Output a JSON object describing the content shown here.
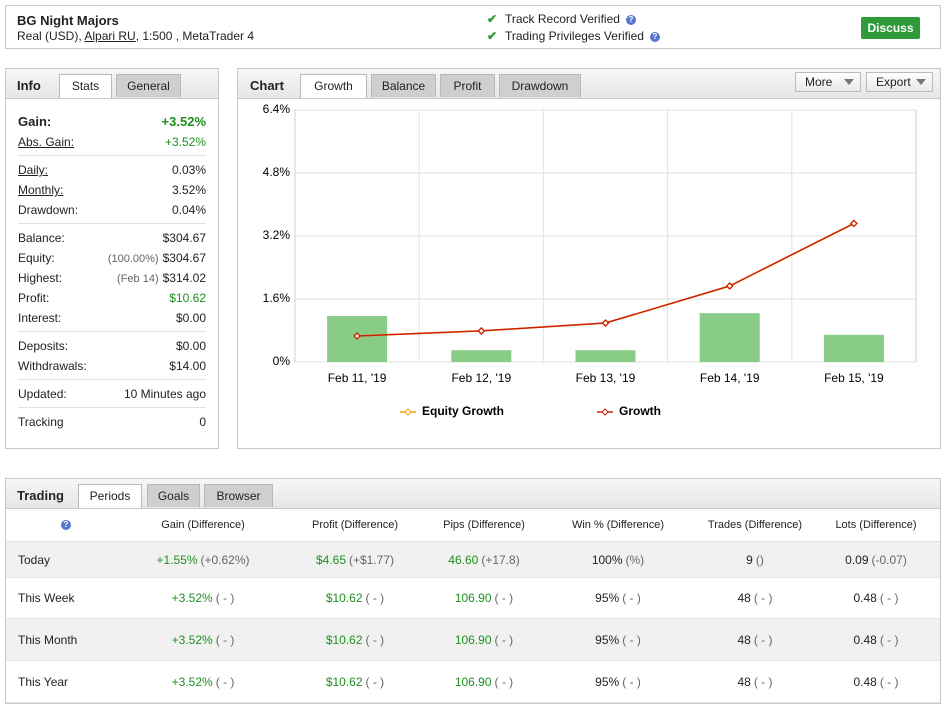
{
  "header": {
    "title": "BG Night Majors",
    "account": {
      "prefix": "Real (USD), ",
      "broker": "Alpari RU",
      "suffix": ", 1:500 , MetaTrader 4"
    },
    "verifications": [
      "Track Record Verified",
      "Trading Privileges Verified"
    ],
    "button": "Discuss"
  },
  "info": {
    "label": "Info",
    "tabs": [
      "Stats",
      "General"
    ],
    "groups": [
      [
        {
          "label": "Gain:",
          "value": "+3.52%",
          "color": "#1e8f1e"
        },
        {
          "label": "Abs. Gain:",
          "value": "+3.52%",
          "color": "#1e8f1e",
          "underline": true
        }
      ],
      [
        {
          "label": "Daily:",
          "value": "0.03%",
          "underline": true
        },
        {
          "label": "Monthly:",
          "value": "3.52%",
          "underline": true
        },
        {
          "label": "Drawdown:",
          "value": "0.04%"
        }
      ],
      [
        {
          "label": "Balance:",
          "value": "$304.67"
        },
        {
          "label": "Equity:",
          "note": "(100.00%)",
          "value": "$304.67"
        },
        {
          "label": "Highest:",
          "note": "(Feb 14)",
          "value": "$314.02"
        },
        {
          "label": "Profit:",
          "value": "$10.62",
          "color": "#1e8f1e"
        },
        {
          "label": "Interest:",
          "value": "$0.00"
        }
      ],
      [
        {
          "label": "Deposits:",
          "value": "$0.00"
        },
        {
          "label": "Withdrawals:",
          "value": "$14.00"
        }
      ],
      [
        {
          "label": "Updated:",
          "value": "10 Minutes ago"
        }
      ],
      [
        {
          "label": "Tracking",
          "value": "0"
        }
      ]
    ]
  },
  "chart_panel": {
    "label": "Chart",
    "tabs": [
      "Growth",
      "Balance",
      "Profit",
      "Drawdown"
    ],
    "buttons": [
      "More",
      "Export"
    ]
  },
  "chart_data": {
    "type": "combo",
    "categories": [
      "Feb 11, '19",
      "Feb 12, '19",
      "Feb 13, '19",
      "Feb 14, '19",
      "Feb 15, '19"
    ],
    "series": [
      {
        "type": "bar",
        "color": "#88cc88",
        "values": [
          1.17,
          0.3,
          0.3,
          1.24,
          0.69
        ]
      },
      {
        "name": "Equity Growth",
        "type": "line",
        "color": "#f0a30a",
        "values": [
          0.66,
          0.79,
          0.99,
          1.93,
          3.52
        ]
      },
      {
        "name": "Growth",
        "type": "line",
        "color": "#cc2200",
        "values": [
          0.66,
          0.79,
          0.99,
          1.93,
          3.52
        ]
      }
    ],
    "ylim": [
      0,
      6.4
    ],
    "yticks": [
      {
        "value": 0,
        "label": "0%"
      },
      {
        "value": 1.6,
        "label": "1.6%"
      },
      {
        "value": 3.2,
        "label": "3.2%"
      },
      {
        "value": 4.8,
        "label": "4.8%"
      },
      {
        "value": 6.4,
        "label": "6.4%"
      }
    ],
    "grid": true
  },
  "trading": {
    "label": "Trading",
    "tabs": [
      "Periods",
      "Goals",
      "Browser"
    ],
    "columns": [
      "Gain (Difference)",
      "Profit (Difference)",
      "Pips (Difference)",
      "Win % (Difference)",
      "Trades (Difference)",
      "Lots (Difference)"
    ],
    "rows": [
      {
        "label": "Today",
        "cells": [
          {
            "value": "+1.55%",
            "diff": "(+0.62%)",
            "color": "#1e8f1e"
          },
          {
            "value": "$4.65",
            "diff": "(+$1.77)",
            "color": "#1e8f1e"
          },
          {
            "value": "46.60",
            "diff": "(+17.8)",
            "color": "#1e8f1e"
          },
          {
            "value": "100%",
            "diff": "(%)"
          },
          {
            "value": "9",
            "diff": "()"
          },
          {
            "value": "0.09",
            "diff": "(-0.07)"
          }
        ]
      },
      {
        "label": "This Week",
        "cells": [
          {
            "value": "+3.52%",
            "diff": "( - )",
            "color": "#1e8f1e"
          },
          {
            "value": "$10.62",
            "diff": "( - )",
            "color": "#1e8f1e"
          },
          {
            "value": "106.90",
            "diff": "( - )",
            "color": "#1e8f1e"
          },
          {
            "value": "95%",
            "diff": "( - )"
          },
          {
            "value": "48",
            "diff": "( - )"
          },
          {
            "value": "0.48",
            "diff": "( - )"
          }
        ]
      },
      {
        "label": "This Month",
        "cells": [
          {
            "value": "+3.52%",
            "diff": "( - )",
            "color": "#1e8f1e"
          },
          {
            "value": "$10.62",
            "diff": "( - )",
            "color": "#1e8f1e"
          },
          {
            "value": "106.90",
            "diff": "( - )",
            "color": "#1e8f1e"
          },
          {
            "value": "95%",
            "diff": "( - )"
          },
          {
            "value": "48",
            "diff": "( - )"
          },
          {
            "value": "0.48",
            "diff": "( - )"
          }
        ]
      },
      {
        "label": "This Year",
        "cells": [
          {
            "value": "+3.52%",
            "diff": "( - )",
            "color": "#1e8f1e"
          },
          {
            "value": "$10.62",
            "diff": "( - )",
            "color": "#1e8f1e"
          },
          {
            "value": "106.90",
            "diff": "( - )",
            "color": "#1e8f1e"
          },
          {
            "value": "95%",
            "diff": "( - )"
          },
          {
            "value": "48",
            "diff": "( - )"
          },
          {
            "value": "0.48",
            "diff": "( - )"
          }
        ]
      }
    ]
  }
}
